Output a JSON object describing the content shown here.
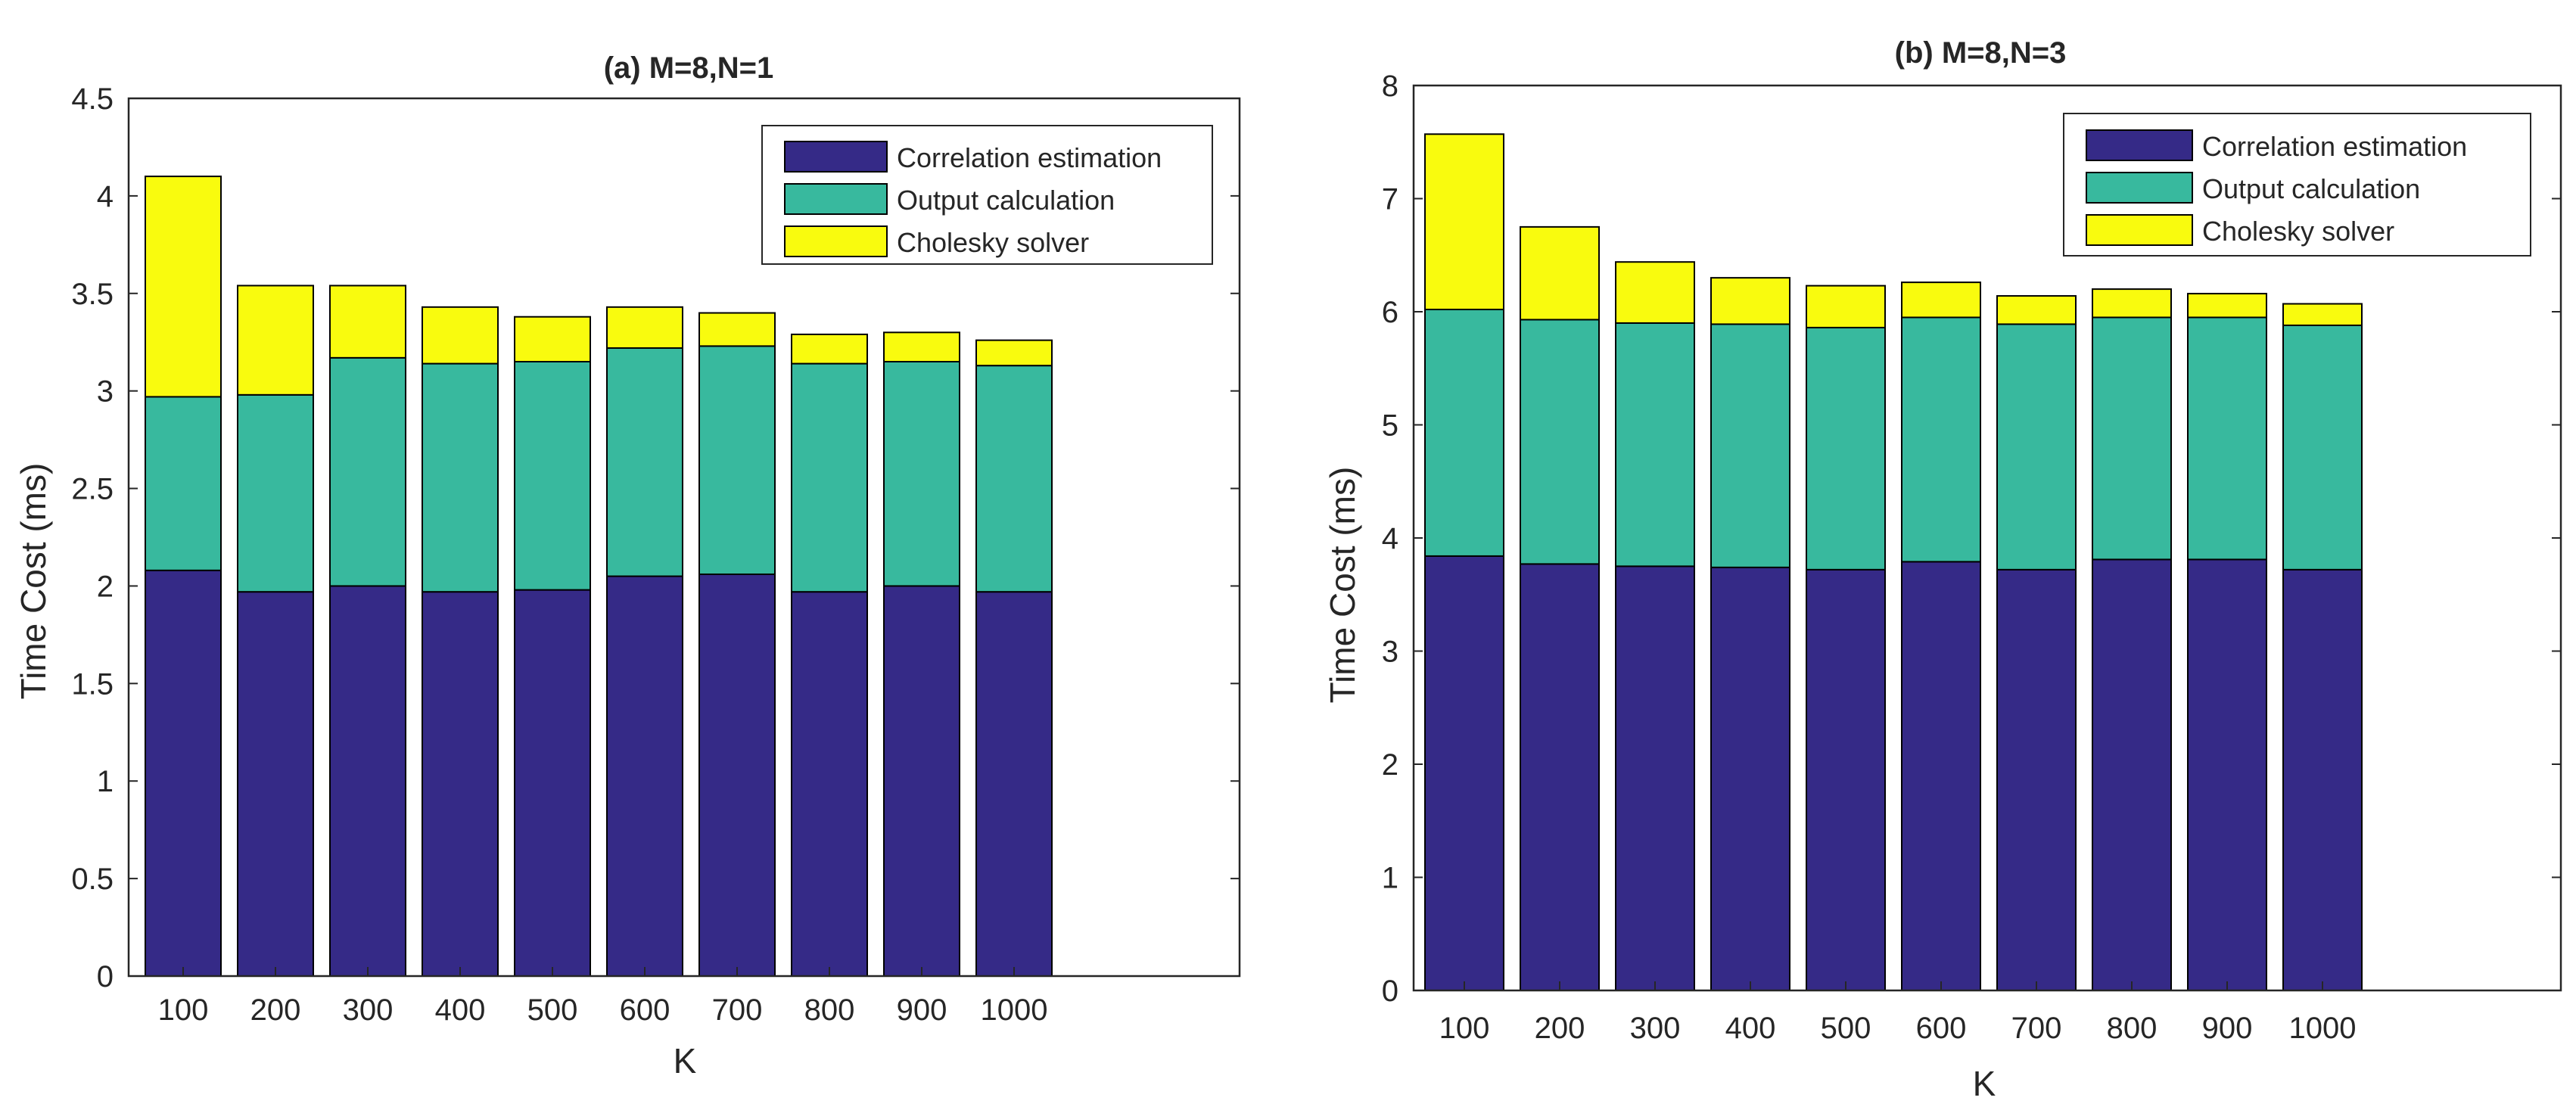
{
  "colors": {
    "correlation": "#352A87",
    "output": "#38B99E",
    "cholesky": "#F9FB0E"
  },
  "chart_data": [
    {
      "type": "bar",
      "stacked": true,
      "title": "(a) M=8,N=1",
      "xlabel": "K",
      "ylabel": "Time Cost (ms)",
      "categories": [
        "100",
        "200",
        "300",
        "400",
        "500",
        "600",
        "700",
        "800",
        "900",
        "1000"
      ],
      "ylim": [
        0,
        4.5
      ],
      "yticks": [
        "0",
        "0.5",
        "1",
        "1.5",
        "2",
        "2.5",
        "3",
        "3.5",
        "4",
        "4.5"
      ],
      "legend_position": "top-right",
      "series": [
        {
          "name": "Correlation estimation",
          "color_key": "correlation",
          "values": [
            2.08,
            1.97,
            2.0,
            1.97,
            1.98,
            2.05,
            2.06,
            1.97,
            2.0,
            1.97
          ]
        },
        {
          "name": "Output calculation",
          "color_key": "output",
          "values": [
            0.89,
            1.01,
            1.17,
            1.17,
            1.17,
            1.17,
            1.17,
            1.17,
            1.15,
            1.16
          ]
        },
        {
          "name": "Cholesky solver",
          "color_key": "cholesky",
          "values": [
            1.13,
            0.56,
            0.37,
            0.29,
            0.23,
            0.21,
            0.17,
            0.15,
            0.15,
            0.13
          ]
        }
      ]
    },
    {
      "type": "bar",
      "stacked": true,
      "title": "(b) M=8,N=3",
      "xlabel": "K",
      "ylabel": "Time Cost (ms)",
      "categories": [
        "100",
        "200",
        "300",
        "400",
        "500",
        "600",
        "700",
        "800",
        "900",
        "1000"
      ],
      "ylim": [
        0,
        8
      ],
      "yticks": [
        "0",
        "1",
        "2",
        "3",
        "4",
        "5",
        "6",
        "7",
        "8"
      ],
      "legend_position": "top-right",
      "series": [
        {
          "name": "Correlation estimation",
          "color_key": "correlation",
          "values": [
            3.84,
            3.77,
            3.75,
            3.74,
            3.72,
            3.79,
            3.72,
            3.81,
            3.81,
            3.72
          ]
        },
        {
          "name": "Output calculation",
          "color_key": "output",
          "values": [
            2.18,
            2.16,
            2.15,
            2.15,
            2.14,
            2.16,
            2.17,
            2.14,
            2.14,
            2.16
          ]
        },
        {
          "name": "Cholesky solver",
          "color_key": "cholesky",
          "values": [
            1.55,
            0.82,
            0.54,
            0.41,
            0.37,
            0.31,
            0.25,
            0.25,
            0.21,
            0.19
          ]
        }
      ]
    }
  ]
}
